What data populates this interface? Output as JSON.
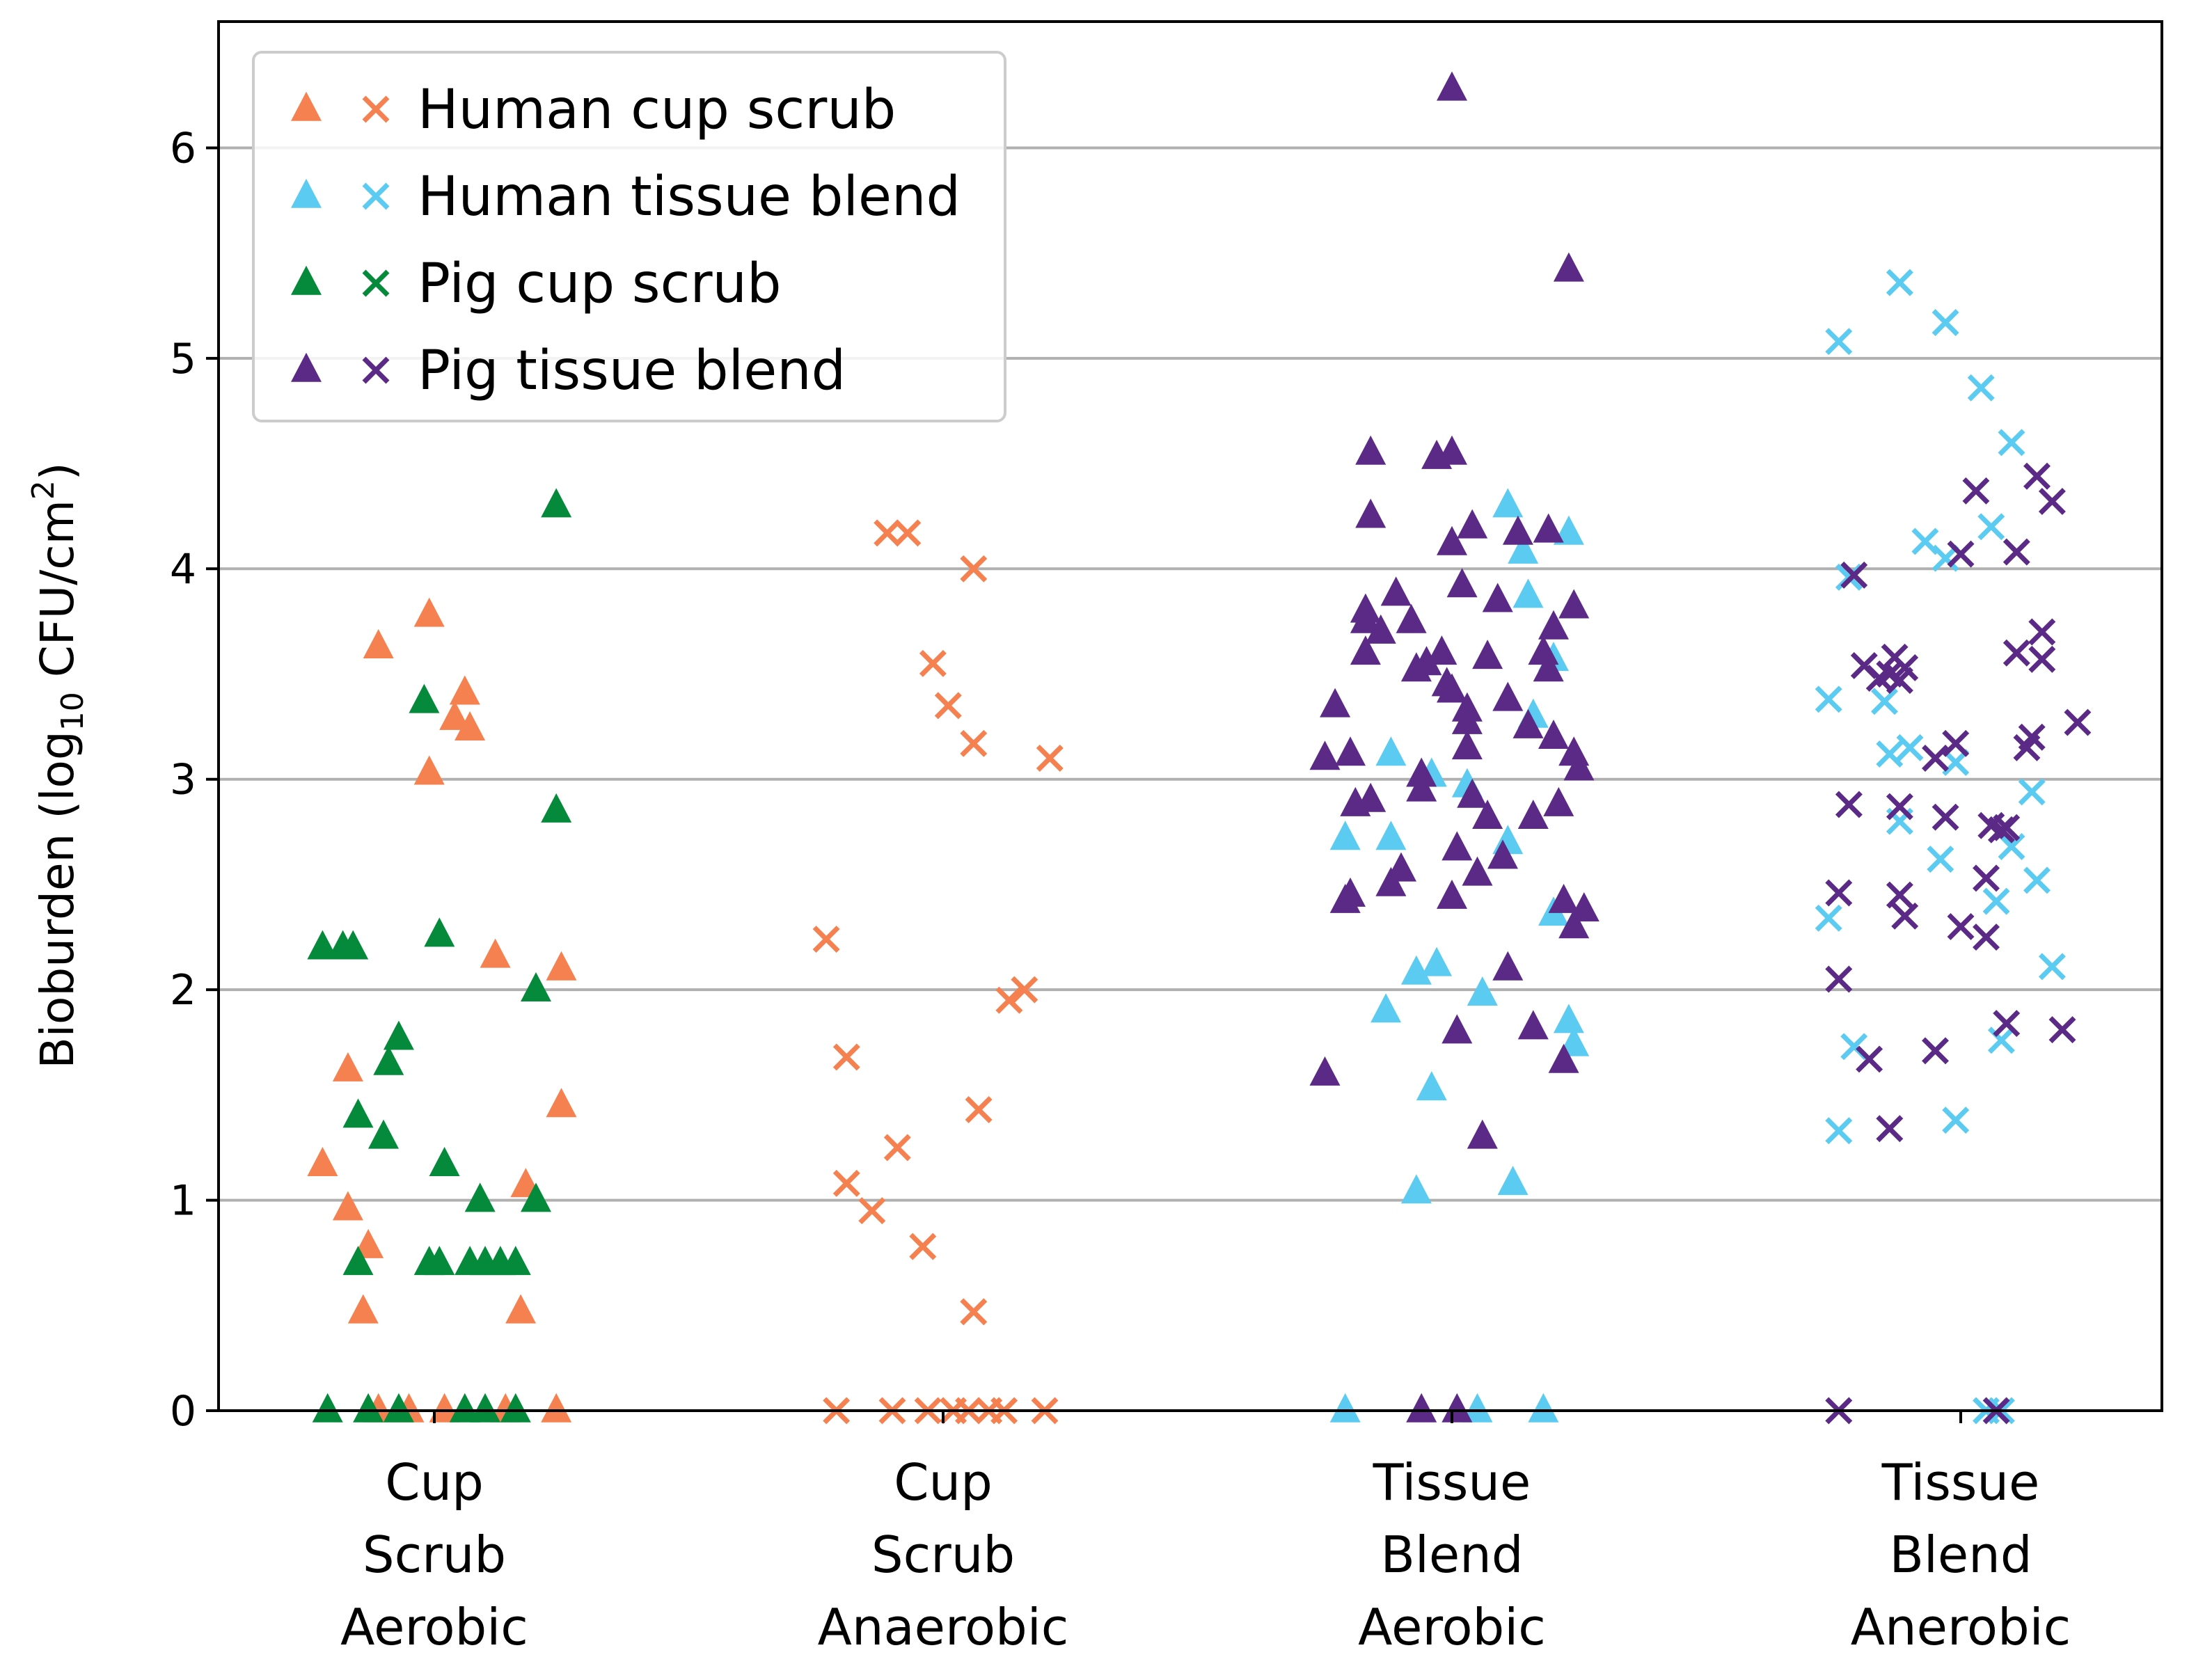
{
  "chart_data": {
    "type": "scatter",
    "ylabel_main": "Bioburden (log",
    "ylabel_sub": "10",
    "ylabel_rest": " CFU/cm",
    "ylabel_sup": "2",
    "ylabel_close": ")",
    "ylim": [
      0,
      6.6
    ],
    "yticks": [
      "0",
      "1",
      "2",
      "3",
      "4",
      "5",
      "6"
    ],
    "grid": "horizontal",
    "legend_position": "top-left",
    "categories": [
      [
        "Cup",
        "Scrub",
        "Aerobic"
      ],
      [
        "Cup",
        "Scrub",
        "Anaerobic"
      ],
      [
        "Tissue",
        "Blend",
        "Aerobic"
      ],
      [
        "Tissue",
        "Blend",
        "Anerobic"
      ]
    ],
    "series": [
      {
        "name": "Human cup scrub",
        "color": "#F4814F"
      },
      {
        "name": "Human tissue blend",
        "color": "#5CCBF1"
      },
      {
        "name": "Pig cup scrub",
        "color": "#058A3B"
      },
      {
        "name": "Pig tissue blend",
        "color": "#5A2A86"
      }
    ],
    "markers": {
      "aerobic": "triangle",
      "anaerobic": "x"
    },
    "points": {
      "cup_aerobic": {
        "Human cup scrub": [
          [
            -0.22,
            1.17
          ],
          [
            -0.17,
            0.96
          ],
          [
            -0.13,
            0.78
          ],
          [
            -0.14,
            0.47
          ],
          [
            -0.17,
            1.62
          ],
          [
            -0.11,
            3.63
          ],
          [
            -0.01,
            3.78
          ],
          [
            -0.01,
            3.03
          ],
          [
            0.04,
            3.29
          ],
          [
            0.06,
            3.41
          ],
          [
            0.07,
            3.24
          ],
          [
            0.12,
            2.16
          ],
          [
            0.18,
            1.07
          ],
          [
            0.17,
            0.47
          ],
          [
            0.25,
            2.1
          ],
          [
            0.25,
            1.45
          ],
          [
            -0.11,
            0.0
          ],
          [
            -0.05,
            0.0
          ],
          [
            0.02,
            0.0
          ],
          [
            0.14,
            0.0
          ],
          [
            0.24,
            0.0
          ]
        ],
        "Pig cup scrub": [
          [
            -0.22,
            2.2
          ],
          [
            -0.18,
            2.2
          ],
          [
            -0.16,
            2.2
          ],
          [
            -0.15,
            1.4
          ],
          [
            -0.15,
            0.7
          ],
          [
            -0.1,
            1.3
          ],
          [
            -0.09,
            1.65
          ],
          [
            -0.07,
            1.77
          ],
          [
            -0.02,
            3.37
          ],
          [
            -0.01,
            0.7
          ],
          [
            0.01,
            2.26
          ],
          [
            0.01,
            0.7
          ],
          [
            0.02,
            1.17
          ],
          [
            0.07,
            0.7
          ],
          [
            0.09,
            1.0
          ],
          [
            0.1,
            0.7
          ],
          [
            0.13,
            0.7
          ],
          [
            0.16,
            0.7
          ],
          [
            0.2,
            2.0
          ],
          [
            0.2,
            1.0
          ],
          [
            0.24,
            2.85
          ],
          [
            0.24,
            4.3
          ],
          [
            -0.21,
            0.0
          ],
          [
            -0.13,
            0.0
          ],
          [
            -0.07,
            0.0
          ],
          [
            0.06,
            0.0
          ],
          [
            0.1,
            0.0
          ],
          [
            0.16,
            0.0
          ]
        ]
      },
      "cup_anaerobic": {
        "Human cup scrub": [
          [
            -0.23,
            2.24
          ],
          [
            -0.19,
            1.68
          ],
          [
            -0.19,
            1.08
          ],
          [
            -0.14,
            0.95
          ],
          [
            -0.11,
            4.17
          ],
          [
            -0.07,
            4.17
          ],
          [
            -0.09,
            1.25
          ],
          [
            -0.02,
            3.55
          ],
          [
            -0.04,
            0.78
          ],
          [
            0.01,
            3.35
          ],
          [
            0.06,
            4.0
          ],
          [
            0.06,
            3.17
          ],
          [
            0.06,
            0.47
          ],
          [
            0.07,
            1.43
          ],
          [
            0.13,
            1.95
          ],
          [
            0.16,
            2.0
          ],
          [
            0.21,
            3.1
          ],
          [
            -0.21,
            0.0
          ],
          [
            -0.1,
            0.0
          ],
          [
            -0.03,
            0.0
          ],
          [
            0.02,
            0.0
          ],
          [
            0.05,
            0.0
          ],
          [
            0.09,
            0.0
          ],
          [
            0.12,
            0.0
          ],
          [
            0.2,
            0.0
          ]
        ]
      },
      "tissue_aerobic": {
        "Human tissue blend": [
          [
            -0.21,
            2.72
          ],
          [
            -0.13,
            1.9
          ],
          [
            -0.12,
            3.12
          ],
          [
            -0.12,
            2.72
          ],
          [
            -0.07,
            2.08
          ],
          [
            -0.04,
            3.02
          ],
          [
            -0.03,
            2.12
          ],
          [
            -0.04,
            1.53
          ],
          [
            -0.07,
            1.04
          ],
          [
            0.03,
            2.97
          ],
          [
            0.06,
            1.98
          ],
          [
            0.11,
            4.3
          ],
          [
            0.11,
            2.7
          ],
          [
            0.12,
            1.08
          ],
          [
            0.14,
            4.08
          ],
          [
            0.15,
            3.87
          ],
          [
            0.16,
            3.3
          ],
          [
            0.2,
            3.57
          ],
          [
            0.2,
            2.36
          ],
          [
            0.23,
            4.17
          ],
          [
            0.23,
            1.85
          ],
          [
            0.24,
            1.74
          ],
          [
            -0.21,
            0.0
          ],
          [
            0.05,
            0.0
          ],
          [
            0.18,
            0.0
          ]
        ],
        "Pig tissue blend": [
          [
            -0.25,
            1.6
          ],
          [
            -0.25,
            3.1
          ],
          [
            -0.23,
            3.35
          ],
          [
            -0.21,
            2.42
          ],
          [
            -0.2,
            2.45
          ],
          [
            -0.2,
            3.12
          ],
          [
            -0.19,
            2.88
          ],
          [
            -0.17,
            3.75
          ],
          [
            -0.17,
            3.8
          ],
          [
            -0.17,
            3.6
          ],
          [
            -0.16,
            4.55
          ],
          [
            -0.16,
            4.25
          ],
          [
            -0.16,
            2.9
          ],
          [
            -0.14,
            3.7
          ],
          [
            -0.12,
            2.5
          ],
          [
            -0.11,
            3.88
          ],
          [
            -0.1,
            2.57
          ],
          [
            -0.08,
            3.75
          ],
          [
            -0.07,
            3.52
          ],
          [
            -0.06,
            3.02
          ],
          [
            -0.06,
            2.95
          ],
          [
            -0.05,
            3.55
          ],
          [
            -0.03,
            4.53
          ],
          [
            -0.02,
            3.6
          ],
          [
            -0.01,
            3.45
          ],
          [
            0.0,
            6.28
          ],
          [
            0.0,
            4.55
          ],
          [
            0.0,
            4.12
          ],
          [
            0.0,
            3.42
          ],
          [
            0.01,
            2.67
          ],
          [
            0.0,
            2.44
          ],
          [
            0.01,
            1.8
          ],
          [
            0.02,
            3.92
          ],
          [
            0.03,
            3.33
          ],
          [
            0.03,
            3.15
          ],
          [
            0.03,
            3.27
          ],
          [
            0.04,
            4.2
          ],
          [
            0.04,
            2.92
          ],
          [
            0.05,
            2.55
          ],
          [
            0.06,
            1.3
          ],
          [
            0.07,
            3.58
          ],
          [
            0.07,
            2.82
          ],
          [
            0.09,
            3.85
          ],
          [
            0.1,
            2.63
          ],
          [
            0.11,
            3.38
          ],
          [
            0.11,
            2.1
          ],
          [
            0.13,
            4.17
          ],
          [
            0.15,
            3.25
          ],
          [
            0.16,
            2.82
          ],
          [
            0.16,
            1.82
          ],
          [
            0.18,
            3.6
          ],
          [
            0.19,
            4.18
          ],
          [
            0.19,
            3.52
          ],
          [
            0.2,
            3.72
          ],
          [
            0.2,
            3.2
          ],
          [
            0.21,
            2.88
          ],
          [
            0.22,
            2.42
          ],
          [
            0.22,
            1.66
          ],
          [
            0.23,
            5.42
          ],
          [
            0.24,
            3.82
          ],
          [
            0.24,
            3.12
          ],
          [
            0.24,
            2.3
          ],
          [
            0.25,
            3.05
          ],
          [
            0.26,
            2.38
          ],
          [
            -0.06,
            0.0
          ],
          [
            0.01,
            0.0
          ]
        ]
      },
      "tissue_anaerobic": {
        "Human tissue blend": [
          [
            -0.26,
            3.38
          ],
          [
            -0.26,
            2.34
          ],
          [
            -0.24,
            5.08
          ],
          [
            -0.24,
            1.33
          ],
          [
            -0.22,
            3.96
          ],
          [
            -0.21,
            1.73
          ],
          [
            -0.15,
            3.37
          ],
          [
            -0.14,
            3.12
          ],
          [
            -0.12,
            2.8
          ],
          [
            -0.12,
            5.36
          ],
          [
            -0.1,
            3.15
          ],
          [
            -0.07,
            4.13
          ],
          [
            -0.03,
            4.05
          ],
          [
            -0.04,
            2.62
          ],
          [
            -0.03,
            5.17
          ],
          [
            -0.01,
            3.08
          ],
          [
            -0.01,
            1.38
          ],
          [
            0.04,
            4.86
          ],
          [
            0.06,
            4.2
          ],
          [
            0.08,
            1.76
          ],
          [
            0.07,
            2.42
          ],
          [
            0.1,
            4.6
          ],
          [
            0.1,
            2.68
          ],
          [
            0.14,
            2.94
          ],
          [
            0.15,
            2.52
          ],
          [
            0.18,
            2.11
          ],
          [
            0.05,
            0.0
          ],
          [
            0.08,
            0.0
          ]
        ],
        "Pig tissue blend": [
          [
            -0.24,
            2.46
          ],
          [
            -0.24,
            2.05
          ],
          [
            -0.22,
            2.88
          ],
          [
            -0.21,
            3.97
          ],
          [
            -0.19,
            3.54
          ],
          [
            -0.18,
            1.67
          ],
          [
            -0.16,
            3.48
          ],
          [
            -0.14,
            3.5
          ],
          [
            -0.13,
            3.58
          ],
          [
            -0.12,
            3.47
          ],
          [
            -0.11,
            3.53
          ],
          [
            -0.14,
            1.34
          ],
          [
            -0.12,
            2.45
          ],
          [
            -0.12,
            2.87
          ],
          [
            -0.11,
            2.35
          ],
          [
            -0.05,
            3.1
          ],
          [
            -0.05,
            1.71
          ],
          [
            -0.03,
            2.82
          ],
          [
            -0.01,
            3.17
          ],
          [
            0.0,
            2.3
          ],
          [
            0.0,
            4.07
          ],
          [
            0.03,
            4.37
          ],
          [
            0.05,
            2.25
          ],
          [
            0.05,
            2.53
          ],
          [
            0.06,
            2.78
          ],
          [
            0.08,
            2.76
          ],
          [
            0.09,
            1.84
          ],
          [
            0.11,
            4.08
          ],
          [
            0.09,
            2.77
          ],
          [
            0.11,
            3.6
          ],
          [
            0.13,
            3.15
          ],
          [
            0.14,
            3.2
          ],
          [
            0.15,
            4.44
          ],
          [
            0.16,
            3.57
          ],
          [
            0.16,
            3.7
          ],
          [
            0.18,
            4.32
          ],
          [
            0.2,
            1.81
          ],
          [
            0.23,
            3.27
          ],
          [
            -0.24,
            0.0
          ],
          [
            0.07,
            0.0
          ]
        ]
      }
    }
  }
}
